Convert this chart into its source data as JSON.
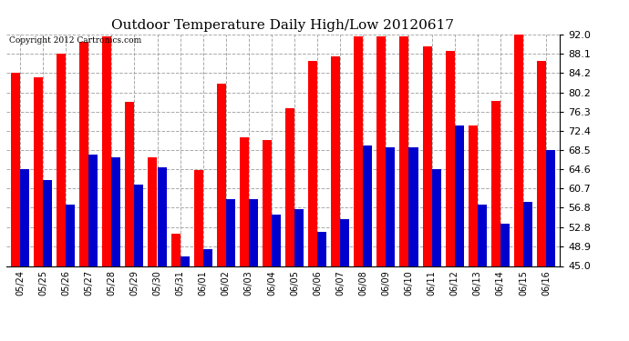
{
  "title": "Outdoor Temperature Daily High/Low 20120617",
  "copyright": "Copyright 2012 Cartronics.com",
  "categories": [
    "05/24",
    "05/25",
    "05/26",
    "05/27",
    "05/28",
    "05/29",
    "05/30",
    "05/31",
    "06/01",
    "06/02",
    "06/03",
    "06/04",
    "06/05",
    "06/06",
    "06/07",
    "06/08",
    "06/09",
    "06/10",
    "06/11",
    "06/12",
    "06/13",
    "06/14",
    "06/15",
    "06/16"
  ],
  "highs": [
    84.2,
    83.2,
    88.1,
    90.5,
    91.5,
    78.2,
    67.0,
    51.5,
    64.5,
    82.0,
    71.0,
    70.5,
    77.0,
    86.5,
    87.5,
    91.5,
    91.5,
    91.5,
    89.5,
    88.5,
    73.5,
    78.5,
    93.5,
    86.5
  ],
  "lows": [
    64.6,
    62.5,
    57.5,
    67.5,
    67.0,
    61.5,
    65.0,
    47.0,
    48.5,
    58.5,
    58.5,
    55.5,
    56.5,
    52.0,
    54.5,
    69.5,
    69.0,
    69.0,
    64.6,
    73.5,
    57.5,
    53.5,
    58.0,
    68.5
  ],
  "high_color": "#FF0000",
  "low_color": "#0000CC",
  "bg_color": "#FFFFFF",
  "grid_color": "#AAAAAA",
  "ylim_min": 45.0,
  "ylim_max": 92.0,
  "yticks": [
    45.0,
    48.9,
    52.8,
    56.8,
    60.7,
    64.6,
    68.5,
    72.4,
    76.3,
    80.2,
    84.2,
    88.1,
    92.0
  ],
  "yticklabels": [
    "45.0",
    "48.9",
    "52.8",
    "56.8",
    "60.7",
    "64.6",
    "68.5",
    "72.4",
    "76.3",
    "80.2",
    "84.2",
    "88.1",
    "92.0"
  ]
}
